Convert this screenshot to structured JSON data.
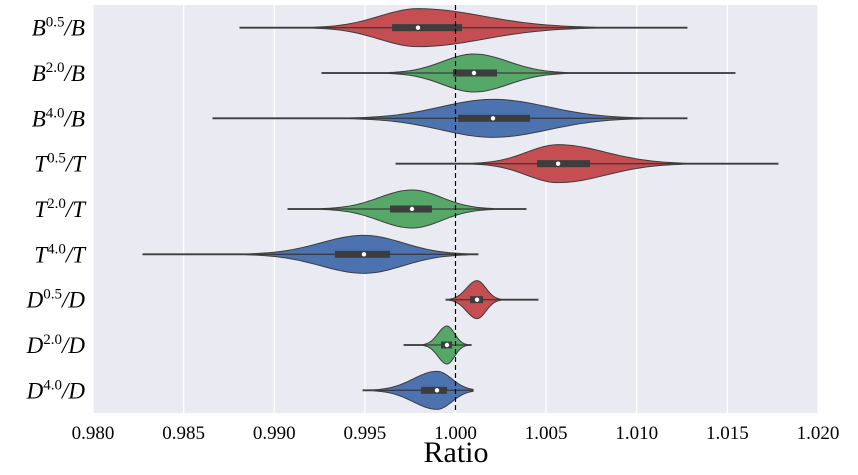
{
  "chart_data": {
    "type": "violin",
    "xlabel": "Ratio",
    "categories": [
      {
        "base": "B",
        "exp": "0.5",
        "tail": "/B"
      },
      {
        "base": "B",
        "exp": "2.0",
        "tail": "/B"
      },
      {
        "base": "B",
        "exp": "4.0",
        "tail": "/B"
      },
      {
        "base": "T",
        "exp": "0.5",
        "tail": "/T"
      },
      {
        "base": "T",
        "exp": "2.0",
        "tail": "/T"
      },
      {
        "base": "T",
        "exp": "4.0",
        "tail": "/T"
      },
      {
        "base": "D",
        "exp": "0.5",
        "tail": "/D"
      },
      {
        "base": "D",
        "exp": "2.0",
        "tail": "/D"
      },
      {
        "base": "D",
        "exp": "4.0",
        "tail": "/D"
      }
    ],
    "colors": [
      "#c44e52",
      "#55a868",
      "#4c72b0",
      "#c44e52",
      "#55a868",
      "#4c72b0",
      "#c44e52",
      "#55a868",
      "#4c72b0"
    ],
    "min": [
      0.98811,
      0.99263,
      0.98662,
      0.99672,
      0.99076,
      0.98276,
      0.99948,
      0.99716,
      0.9949
    ],
    "q1": [
      0.9965,
      0.99986,
      1.00014,
      1.0045,
      0.99639,
      0.99335,
      1.0008,
      0.9992,
      0.9981
    ],
    "median": [
      0.99793,
      1.00102,
      1.00207,
      1.00566,
      0.9976,
      0.99495,
      1.00119,
      0.99953,
      0.99898
    ],
    "q3": [
      1.00036,
      1.00229,
      1.00411,
      1.00742,
      0.9987,
      0.99639,
      1.00152,
      0.99981,
      0.99953
    ],
    "max": [
      1.01277,
      1.01542,
      1.01277,
      1.01779,
      1.00389,
      1.00124,
      1.00455,
      1.00086,
      1.00097
    ],
    "reference_line": 1,
    "xlim": [
      0.98,
      1.02
    ],
    "xticks": [
      {
        "value": 0.98,
        "label": "0.980"
      },
      {
        "value": 0.985,
        "label": "0.985"
      },
      {
        "value": 0.99,
        "label": "0.990"
      },
      {
        "value": 0.995,
        "label": "0.995"
      },
      {
        "value": 1,
        "label": "1.000"
      },
      {
        "value": 1.005,
        "label": "1.005"
      },
      {
        "value": 1.01,
        "label": "1.010"
      },
      {
        "value": 1.015,
        "label": "1.015"
      },
      {
        "value": 1.02,
        "label": "1.020"
      }
    ],
    "grid": true
  }
}
